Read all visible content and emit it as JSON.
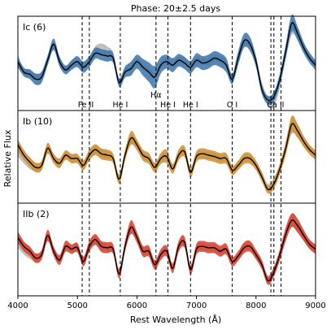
{
  "chart_data": {
    "type": "line",
    "title": "Phase: 20±2.5 days",
    "xlabel": "Rest Wavelength (Å)",
    "ylabel": "Relative Flux",
    "xlim": [
      4000,
      9000
    ],
    "xticks": [
      4000,
      5000,
      6000,
      7000,
      8000,
      9000
    ],
    "grid": false,
    "line_markers": [
      {
        "label": "Fe II",
        "x": [
          5080,
          5200
        ],
        "label_x": 5140
      },
      {
        "label": "He I",
        "x": [
          5720
        ],
        "label_x": 5720
      },
      {
        "label": "Hα",
        "x": [
          6320
        ],
        "label_x": 6320,
        "raised": true
      },
      {
        "label": "He I",
        "x": [
          6520
        ],
        "label_x": 6520
      },
      {
        "label": "He I",
        "x": [
          6900
        ],
        "label_x": 6900
      },
      {
        "label": "O I",
        "x": [
          7600
        ],
        "label_x": 7600
      },
      {
        "label": "Ca II",
        "x": [
          8250,
          8300,
          8420
        ],
        "label_x": 8330
      }
    ],
    "panels": [
      {
        "label": "Ic (6)",
        "color": "#3b73a8",
        "x": [
          4000,
          4100,
          4200,
          4300,
          4400,
          4500,
          4600,
          4700,
          4800,
          4900,
          5000,
          5100,
          5200,
          5300,
          5400,
          5500,
          5600,
          5700,
          5800,
          5900,
          6000,
          6100,
          6200,
          6300,
          6400,
          6500,
          6600,
          6700,
          6800,
          6900,
          7000,
          7100,
          7200,
          7300,
          7400,
          7500,
          7600,
          7700,
          7800,
          7900,
          8000,
          8100,
          8200,
          8300,
          8400,
          8500,
          8600,
          8700,
          8800,
          8900,
          9000
        ],
        "mean": [
          0.6,
          0.45,
          0.42,
          0.35,
          0.38,
          0.62,
          0.85,
          0.6,
          0.48,
          0.55,
          0.6,
          0.52,
          0.6,
          0.72,
          0.7,
          0.68,
          0.65,
          0.3,
          0.45,
          0.5,
          0.6,
          0.52,
          0.45,
          0.38,
          0.55,
          0.6,
          0.55,
          0.62,
          0.58,
          0.52,
          0.62,
          0.58,
          0.6,
          0.65,
          0.62,
          0.55,
          0.35,
          0.65,
          0.9,
          0.85,
          0.6,
          0.2,
          0.05,
          0.1,
          0.35,
          0.75,
          1.15,
          1.0,
          0.8,
          0.65,
          0.55
        ],
        "band": [
          0.08,
          0.06,
          0.07,
          0.08,
          0.08,
          0.07,
          0.08,
          0.07,
          0.06,
          0.07,
          0.08,
          0.08,
          0.08,
          0.08,
          0.08,
          0.08,
          0.07,
          0.06,
          0.08,
          0.1,
          0.1,
          0.12,
          0.14,
          0.16,
          0.12,
          0.1,
          0.1,
          0.09,
          0.09,
          0.09,
          0.1,
          0.1,
          0.1,
          0.1,
          0.1,
          0.1,
          0.07,
          0.1,
          0.1,
          0.1,
          0.08,
          0.07,
          0.06,
          0.07,
          0.08,
          0.1,
          0.12,
          0.1,
          0.08,
          0.07,
          0.07
        ],
        "template_mean": [
          0.58,
          0.47,
          0.42,
          0.38,
          0.4,
          0.6,
          0.82,
          0.62,
          0.5,
          0.56,
          0.6,
          0.55,
          0.62,
          0.75,
          0.78,
          0.75,
          0.68,
          0.32,
          0.47,
          0.52,
          0.6,
          0.53,
          0.47,
          0.4,
          0.55,
          0.6,
          0.57,
          0.62,
          0.6,
          0.55,
          0.62,
          0.6,
          0.6,
          0.65,
          0.63,
          0.57,
          0.38,
          0.65,
          0.88,
          0.83,
          0.6,
          0.25,
          0.03,
          0.05,
          0.3,
          0.72,
          1.08,
          1.0,
          0.8,
          0.68,
          0.56
        ],
        "template_band": [
          0.06,
          0.05,
          0.05,
          0.05,
          0.05,
          0.05,
          0.06,
          0.06,
          0.05,
          0.05,
          0.05,
          0.05,
          0.05,
          0.07,
          0.08,
          0.07,
          0.05,
          0.05,
          0.05,
          0.05,
          0.05,
          0.05,
          0.05,
          0.05,
          0.05,
          0.05,
          0.05,
          0.05,
          0.05,
          0.05,
          0.05,
          0.05,
          0.05,
          0.05,
          0.05,
          0.05,
          0.05,
          0.05,
          0.05,
          0.05,
          0.05,
          0.05,
          0.07,
          0.1,
          0.08,
          0.08,
          0.1,
          0.08,
          0.06,
          0.06,
          0.05
        ],
        "ylim": [
          -0.1,
          1.25
        ]
      },
      {
        "label": "Ib (10)",
        "color": "#d08f32",
        "x": [
          4000,
          4100,
          4200,
          4300,
          4400,
          4500,
          4600,
          4700,
          4800,
          4900,
          5000,
          5100,
          5200,
          5300,
          5400,
          5500,
          5600,
          5700,
          5800,
          5900,
          6000,
          6100,
          6200,
          6300,
          6400,
          6500,
          6600,
          6700,
          6800,
          6900,
          7000,
          7100,
          7200,
          7300,
          7400,
          7500,
          7600,
          7700,
          7800,
          7900,
          8000,
          8100,
          8200,
          8300,
          8400,
          8500,
          8600,
          8700,
          8800,
          8900,
          9000
        ],
        "mean": [
          0.75,
          0.6,
          0.5,
          0.42,
          0.45,
          0.7,
          0.55,
          0.48,
          0.6,
          0.55,
          0.55,
          0.45,
          0.6,
          0.68,
          0.62,
          0.6,
          0.55,
          0.25,
          0.6,
          0.85,
          0.75,
          0.6,
          0.55,
          0.42,
          0.55,
          0.58,
          0.4,
          0.6,
          0.65,
          0.35,
          0.58,
          0.62,
          0.6,
          0.58,
          0.55,
          0.55,
          0.38,
          0.45,
          0.55,
          0.55,
          0.45,
          0.28,
          0.1,
          0.18,
          0.4,
          0.7,
          1.05,
          0.95,
          0.8,
          0.68,
          0.6
        ],
        "band": [
          0.08,
          0.07,
          0.07,
          0.07,
          0.07,
          0.08,
          0.07,
          0.07,
          0.07,
          0.07,
          0.07,
          0.07,
          0.08,
          0.08,
          0.08,
          0.08,
          0.07,
          0.07,
          0.08,
          0.1,
          0.08,
          0.08,
          0.08,
          0.07,
          0.08,
          0.1,
          0.07,
          0.08,
          0.08,
          0.07,
          0.08,
          0.08,
          0.08,
          0.08,
          0.08,
          0.08,
          0.07,
          0.07,
          0.08,
          0.08,
          0.07,
          0.07,
          0.06,
          0.07,
          0.08,
          0.1,
          0.12,
          0.1,
          0.08,
          0.07,
          0.07
        ],
        "template_mean": [
          0.7,
          0.58,
          0.48,
          0.42,
          0.45,
          0.68,
          0.56,
          0.5,
          0.6,
          0.55,
          0.55,
          0.47,
          0.6,
          0.68,
          0.63,
          0.6,
          0.55,
          0.27,
          0.6,
          0.82,
          0.75,
          0.6,
          0.55,
          0.43,
          0.55,
          0.58,
          0.42,
          0.6,
          0.64,
          0.37,
          0.58,
          0.6,
          0.6,
          0.58,
          0.55,
          0.55,
          0.4,
          0.46,
          0.55,
          0.55,
          0.45,
          0.3,
          0.12,
          0.2,
          0.4,
          0.7,
          1.03,
          0.95,
          0.8,
          0.68,
          0.6
        ],
        "template_band": [
          0.12,
          0.1,
          0.08,
          0.06,
          0.06,
          0.06,
          0.06,
          0.05,
          0.05,
          0.05,
          0.05,
          0.05,
          0.05,
          0.06,
          0.06,
          0.05,
          0.05,
          0.05,
          0.05,
          0.06,
          0.05,
          0.05,
          0.05,
          0.05,
          0.05,
          0.05,
          0.05,
          0.05,
          0.05,
          0.05,
          0.05,
          0.05,
          0.05,
          0.05,
          0.05,
          0.05,
          0.05,
          0.05,
          0.05,
          0.05,
          0.05,
          0.05,
          0.06,
          0.07,
          0.07,
          0.08,
          0.12,
          0.1,
          0.08,
          0.06,
          0.05
        ],
        "ylim": [
          -0.1,
          1.25
        ]
      },
      {
        "label": "IIb (2)",
        "color": "#d9402e",
        "x": [
          4000,
          4100,
          4200,
          4300,
          4400,
          4500,
          4600,
          4700,
          4800,
          4900,
          5000,
          5100,
          5200,
          5300,
          5400,
          5500,
          5600,
          5700,
          5800,
          5900,
          6000,
          6100,
          6200,
          6300,
          6400,
          6500,
          6600,
          6700,
          6800,
          6900,
          7000,
          7100,
          7200,
          7300,
          7400,
          7500,
          7600,
          7700,
          7800,
          7900,
          8000,
          8100,
          8200,
          8300,
          8400,
          8500,
          8600,
          8700,
          8800,
          8900,
          9000
        ],
        "mean": [
          0.75,
          0.62,
          0.55,
          0.45,
          0.5,
          0.78,
          0.55,
          0.42,
          0.62,
          0.58,
          0.6,
          0.4,
          0.62,
          0.72,
          0.62,
          0.6,
          0.58,
          0.22,
          0.62,
          0.9,
          0.75,
          0.55,
          0.55,
          0.35,
          0.5,
          0.55,
          0.3,
          0.62,
          0.68,
          0.28,
          0.58,
          0.62,
          0.6,
          0.6,
          0.55,
          0.58,
          0.4,
          0.48,
          0.6,
          0.62,
          0.5,
          0.35,
          0.12,
          0.25,
          0.5,
          0.8,
          1.0,
          0.92,
          0.78,
          0.65,
          0.58
        ],
        "band": [
          0.08,
          0.07,
          0.07,
          0.07,
          0.07,
          0.08,
          0.07,
          0.07,
          0.08,
          0.07,
          0.07,
          0.07,
          0.08,
          0.08,
          0.08,
          0.08,
          0.07,
          0.07,
          0.08,
          0.1,
          0.08,
          0.08,
          0.08,
          0.07,
          0.08,
          0.08,
          0.07,
          0.08,
          0.08,
          0.07,
          0.08,
          0.08,
          0.08,
          0.08,
          0.08,
          0.08,
          0.07,
          0.07,
          0.08,
          0.08,
          0.07,
          0.07,
          0.06,
          0.07,
          0.08,
          0.1,
          0.1,
          0.1,
          0.08,
          0.07,
          0.07
        ],
        "template_mean": [
          0.72,
          0.6,
          0.52,
          0.45,
          0.5,
          0.75,
          0.56,
          0.45,
          0.62,
          0.58,
          0.6,
          0.42,
          0.62,
          0.72,
          0.63,
          0.6,
          0.57,
          0.25,
          0.62,
          0.88,
          0.75,
          0.56,
          0.55,
          0.37,
          0.5,
          0.55,
          0.33,
          0.62,
          0.67,
          0.3,
          0.58,
          0.62,
          0.6,
          0.6,
          0.55,
          0.58,
          0.42,
          0.48,
          0.6,
          0.62,
          0.5,
          0.36,
          0.14,
          0.25,
          0.48,
          0.78,
          1.0,
          0.92,
          0.78,
          0.66,
          0.58
        ],
        "template_band": [
          0.12,
          0.1,
          0.08,
          0.06,
          0.06,
          0.06,
          0.06,
          0.05,
          0.05,
          0.05,
          0.05,
          0.05,
          0.05,
          0.06,
          0.06,
          0.05,
          0.05,
          0.05,
          0.05,
          0.06,
          0.05,
          0.05,
          0.05,
          0.05,
          0.05,
          0.05,
          0.05,
          0.05,
          0.05,
          0.05,
          0.05,
          0.05,
          0.05,
          0.05,
          0.05,
          0.05,
          0.05,
          0.05,
          0.05,
          0.05,
          0.05,
          0.05,
          0.06,
          0.07,
          0.07,
          0.08,
          0.1,
          0.1,
          0.08,
          0.06,
          0.05
        ],
        "ylim": [
          -0.1,
          1.25
        ]
      }
    ],
    "template_color": "#9e9e9e",
    "mean_color": "#000000"
  }
}
